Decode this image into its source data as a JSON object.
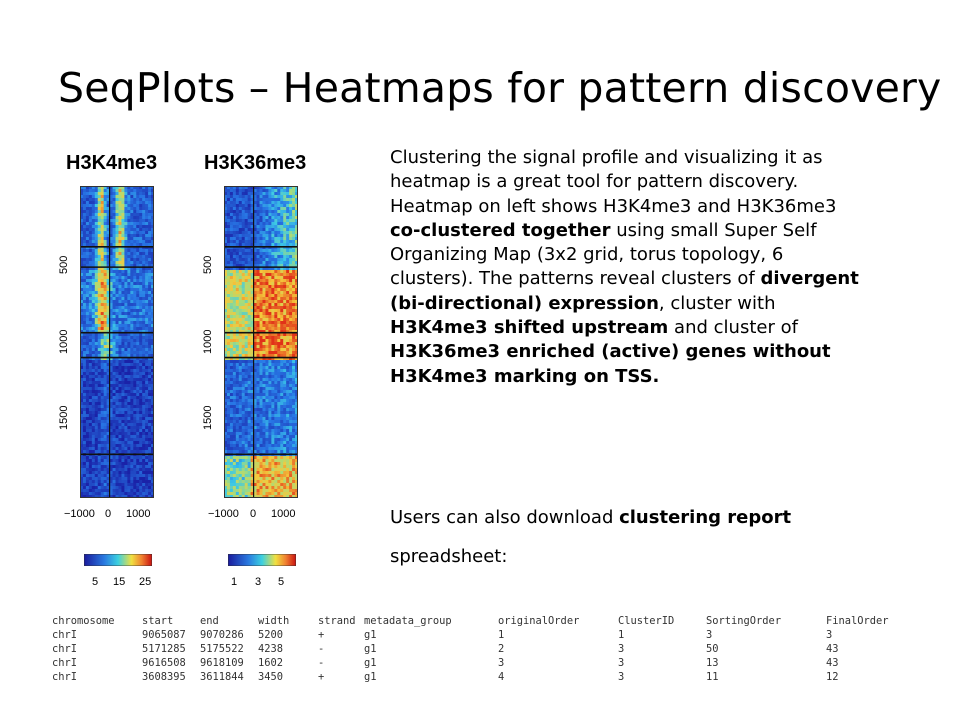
{
  "slide": {
    "title": "SeqPlots – Heatmaps for pattern discovery"
  },
  "heatmaps": [
    {
      "label": "H3K4me3",
      "yticks": [
        "500",
        "1000",
        "1500"
      ],
      "xticks": [
        "−1000",
        "0",
        "1000"
      ],
      "colorbar_ticks": [
        "5",
        "15",
        "25"
      ]
    },
    {
      "label": "H3K36me3",
      "yticks": [
        "500",
        "1000",
        "1500"
      ],
      "xticks": [
        "−1000",
        "0",
        "1000"
      ],
      "colorbar_ticks": [
        "1",
        "3",
        "5"
      ]
    }
  ],
  "colors": {
    "low": "#1a22a8",
    "mid": "#2fa8e8",
    "high": "#e83a1a"
  },
  "text": {
    "p1": [
      {
        "t": "Clustering the signal profile and visualizing it as heatmap is a great tool for pattern discovery. Heatmap on left shows H3K4me3 and H3K36me3 ",
        "b": false
      },
      {
        "t": "co-clustered together",
        "b": true
      },
      {
        "t": " using small Super Self Organizing Map (3x2 grid, torus topology, 6 clusters). The patterns reveal clusters of ",
        "b": false
      },
      {
        "t": "divergent (bi-directional) expression",
        "b": true
      },
      {
        "t": ", cluster with ",
        "b": false
      },
      {
        "t": "H3K4me3 shifted upstream",
        "b": true
      },
      {
        "t": " and cluster of ",
        "b": false
      },
      {
        "t": "H3K36me3 enriched (active) genes without H3K4me3 marking on TSS.",
        "b": true
      }
    ],
    "p2_plain": "Users can also download ",
    "p2_bold": "clustering report",
    "p3": "spreadsheet:"
  },
  "report": {
    "columns": [
      "chromosome",
      "start",
      "end",
      "width",
      "strand",
      "metadata_group",
      "originalOrder",
      "ClusterID",
      "SortingOrder",
      "FinalOrder"
    ],
    "rows": [
      [
        "chrI",
        "9065087",
        "9070286",
        "5200",
        "+",
        "g1",
        "1",
        "1",
        "3",
        "3"
      ],
      [
        "chrI",
        "5171285",
        "5175522",
        "4238",
        "-",
        "g1",
        "2",
        "3",
        "50",
        "43"
      ],
      [
        "chrI",
        "9616508",
        "9618109",
        "1602",
        "-",
        "g1",
        "3",
        "3",
        "13",
        "43"
      ],
      [
        "chrI",
        "3608395",
        "3611844",
        "3450",
        "+",
        "g1",
        "4",
        "3",
        "11",
        "12"
      ]
    ]
  }
}
